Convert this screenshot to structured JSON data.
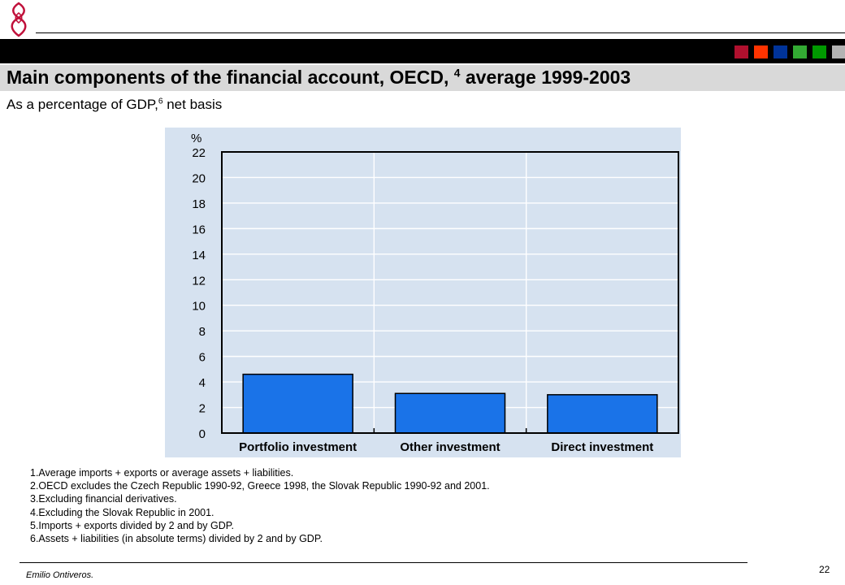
{
  "header": {
    "title_main": "Main components of the financial account, OECD,",
    "title_sup": "4",
    "title_rest": "average 1999-2003",
    "subtitle_main": "As a percentage of GDP,",
    "subtitle_sup": "6",
    "subtitle_rest": "net basis"
  },
  "swatch_colors": [
    "#b0102e",
    "#ff3300",
    "#003399",
    "#33aa33",
    "#009900",
    "#b3b3b3"
  ],
  "chart_data": {
    "type": "bar",
    "categories": [
      "Portfolio investment",
      "Other investment",
      "Direct investment"
    ],
    "values": [
      4.6,
      3.1,
      3.0
    ],
    "ylabel": "%",
    "ylim": [
      0,
      22
    ],
    "yticks": [
      "0",
      "2",
      "4",
      "6",
      "8",
      "10",
      "12",
      "14",
      "16",
      "18",
      "20",
      "22"
    ],
    "grid": true,
    "bar_color": "#1a73e8",
    "background_color": "#d6e2f0"
  },
  "notes": [
    "1.Average imports + exports or average assets + liabilities.",
    "2.OECD excludes the Czech Republic 1990-92, Greece 1998, the Slovak Republic 1990-92 and 2001.",
    "3.Excluding financial derivatives.",
    "4.Excluding the Slovak Republic in 2001.",
    "5.Imports + exports divided by 2 and by GDP.",
    "6.Assets + liabilities (in absolute terms) divided by 2 and by GDP."
  ],
  "footer": {
    "author": "Emilio Ontiveros.",
    "page": "22"
  }
}
